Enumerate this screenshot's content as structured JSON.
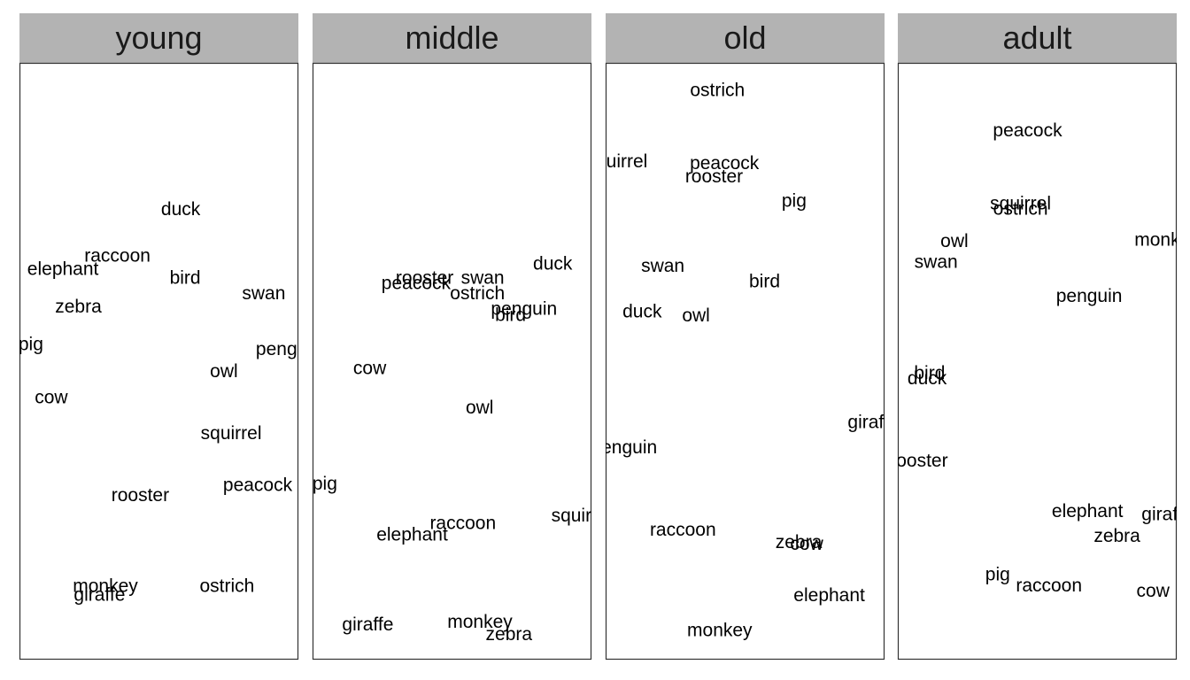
{
  "chart_data": {
    "type": "scatter",
    "xlim": [
      0,
      1
    ],
    "ylim": [
      0,
      1
    ],
    "axes_visible": false,
    "grid": false,
    "strip_color": "#b3b3b3",
    "panel_border_color": "#333333",
    "text_color": "#000000",
    "panels": [
      {
        "label": "young",
        "words": [
          {
            "text": "duck",
            "x": 0.578,
            "y": 0.755
          },
          {
            "text": "raccoon",
            "x": 0.351,
            "y": 0.677
          },
          {
            "text": "elephant",
            "x": 0.156,
            "y": 0.655
          },
          {
            "text": "bird",
            "x": 0.594,
            "y": 0.64
          },
          {
            "text": "swan",
            "x": 0.876,
            "y": 0.614
          },
          {
            "text": "zebra",
            "x": 0.211,
            "y": 0.592
          },
          {
            "text": "pig",
            "x": 0.041,
            "y": 0.529
          },
          {
            "text": "penguin",
            "x": 0.966,
            "y": 0.521
          },
          {
            "text": "owl",
            "x": 0.733,
            "y": 0.484
          },
          {
            "text": "cow",
            "x": 0.114,
            "y": 0.44
          },
          {
            "text": "squirrel",
            "x": 0.759,
            "y": 0.38
          },
          {
            "text": "peacock",
            "x": 0.854,
            "y": 0.293
          },
          {
            "text": "rooster",
            "x": 0.433,
            "y": 0.276
          },
          {
            "text": "monkey",
            "x": 0.308,
            "y": 0.124
          },
          {
            "text": "ostrich",
            "x": 0.744,
            "y": 0.124
          },
          {
            "text": "giraffe",
            "x": 0.287,
            "y": 0.109
          }
        ]
      },
      {
        "label": "middle",
        "words": [
          {
            "text": "duck",
            "x": 0.861,
            "y": 0.664
          },
          {
            "text": "rooster",
            "x": 0.402,
            "y": 0.64
          },
          {
            "text": "swan",
            "x": 0.61,
            "y": 0.64
          },
          {
            "text": "peacock",
            "x": 0.371,
            "y": 0.631
          },
          {
            "text": "ostrich",
            "x": 0.591,
            "y": 0.614
          },
          {
            "text": "penguin",
            "x": 0.758,
            "y": 0.588
          },
          {
            "text": "bird",
            "x": 0.71,
            "y": 0.578
          },
          {
            "text": "cow",
            "x": 0.205,
            "y": 0.489
          },
          {
            "text": "owl",
            "x": 0.599,
            "y": 0.423
          },
          {
            "text": "pig",
            "x": 0.044,
            "y": 0.295
          },
          {
            "text": "squirrel",
            "x": 0.965,
            "y": 0.242
          },
          {
            "text": "raccoon",
            "x": 0.539,
            "y": 0.229
          },
          {
            "text": "elephant",
            "x": 0.357,
            "y": 0.21
          },
          {
            "text": "giraffe",
            "x": 0.198,
            "y": 0.059
          },
          {
            "text": "monkey",
            "x": 0.6,
            "y": 0.064
          },
          {
            "text": "zebra",
            "x": 0.704,
            "y": 0.043
          }
        ]
      },
      {
        "label": "old",
        "words": [
          {
            "text": "ostrich",
            "x": 0.401,
            "y": 0.955
          },
          {
            "text": "squirrel",
            "x": 0.041,
            "y": 0.835
          },
          {
            "text": "peacock",
            "x": 0.426,
            "y": 0.832
          },
          {
            "text": "rooster",
            "x": 0.389,
            "y": 0.81
          },
          {
            "text": "pig",
            "x": 0.676,
            "y": 0.769
          },
          {
            "text": "swan",
            "x": 0.205,
            "y": 0.66
          },
          {
            "text": "bird",
            "x": 0.57,
            "y": 0.634
          },
          {
            "text": "duck",
            "x": 0.131,
            "y": 0.584
          },
          {
            "text": "owl",
            "x": 0.324,
            "y": 0.577
          },
          {
            "text": "giraffe",
            "x": 0.96,
            "y": 0.398
          },
          {
            "text": "penguin",
            "x": 0.066,
            "y": 0.356
          },
          {
            "text": "raccoon",
            "x": 0.277,
            "y": 0.218
          },
          {
            "text": "zebra",
            "x": 0.692,
            "y": 0.197
          },
          {
            "text": "cow",
            "x": 0.721,
            "y": 0.194
          },
          {
            "text": "elephant",
            "x": 0.802,
            "y": 0.108
          },
          {
            "text": "monkey",
            "x": 0.409,
            "y": 0.05
          }
        ]
      },
      {
        "label": "adult",
        "words": [
          {
            "text": "peacock",
            "x": 0.465,
            "y": 0.887
          },
          {
            "text": "squirrel",
            "x": 0.44,
            "y": 0.765
          },
          {
            "text": "ostrich",
            "x": 0.44,
            "y": 0.756
          },
          {
            "text": "owl",
            "x": 0.203,
            "y": 0.702
          },
          {
            "text": "monkey",
            "x": 0.965,
            "y": 0.704
          },
          {
            "text": "swan",
            "x": 0.137,
            "y": 0.667
          },
          {
            "text": "penguin",
            "x": 0.686,
            "y": 0.61
          },
          {
            "text": "bird",
            "x": 0.114,
            "y": 0.481
          },
          {
            "text": "duck",
            "x": 0.105,
            "y": 0.472
          },
          {
            "text": "rooster",
            "x": 0.076,
            "y": 0.334
          },
          {
            "text": "elephant",
            "x": 0.68,
            "y": 0.249
          },
          {
            "text": "giraffe",
            "x": 0.966,
            "y": 0.244
          },
          {
            "text": "zebra",
            "x": 0.786,
            "y": 0.208
          },
          {
            "text": "pig",
            "x": 0.358,
            "y": 0.143
          },
          {
            "text": "raccoon",
            "x": 0.542,
            "y": 0.125
          },
          {
            "text": "cow",
            "x": 0.915,
            "y": 0.116
          }
        ]
      }
    ]
  }
}
